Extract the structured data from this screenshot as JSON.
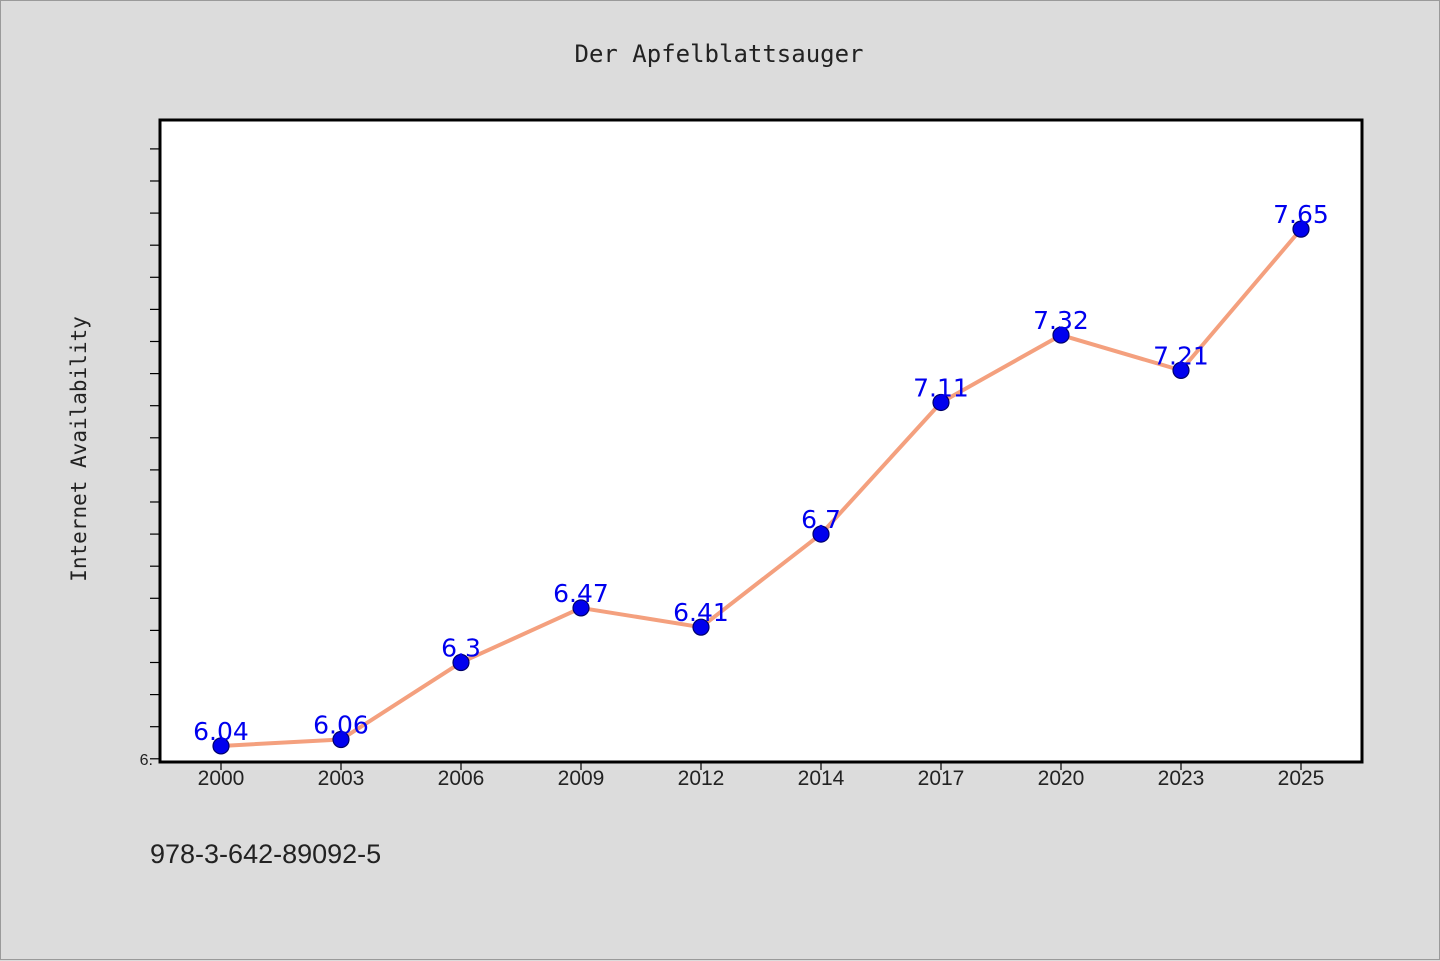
{
  "chart_data": {
    "type": "line",
    "title": "Der Apfelblattsauger",
    "xlabel": "",
    "ylabel": "Internet Availability",
    "categories": [
      "2000",
      "2003",
      "2006",
      "2009",
      "2012",
      "2014",
      "2017",
      "2020",
      "2023",
      "2025"
    ],
    "series": [
      {
        "values": [
          6.04,
          6.06,
          6.3,
          6.47,
          6.41,
          6.7,
          7.11,
          7.32,
          7.21,
          7.65
        ],
        "data_labels": [
          "6.04",
          "6.06",
          "6.3",
          "6.47",
          "6.41",
          "6.7",
          "7.11",
          "7.32",
          "7.21",
          "7.65"
        ],
        "line_color": "#f4a07e",
        "marker_color": "#0000ee"
      }
    ],
    "ylim": [
      5.99,
      7.99
    ],
    "y_minor_step": 0.1,
    "ytick_labels": [
      "6."
    ],
    "grid": false,
    "legend": "none"
  },
  "footer_text": "978-3-642-89092-5",
  "colors": {
    "background": "#dcdcdc",
    "plot_area": "#ffffff",
    "line": "#f4a07e",
    "marker": "#0000ee",
    "data_label": "#0000ee"
  }
}
